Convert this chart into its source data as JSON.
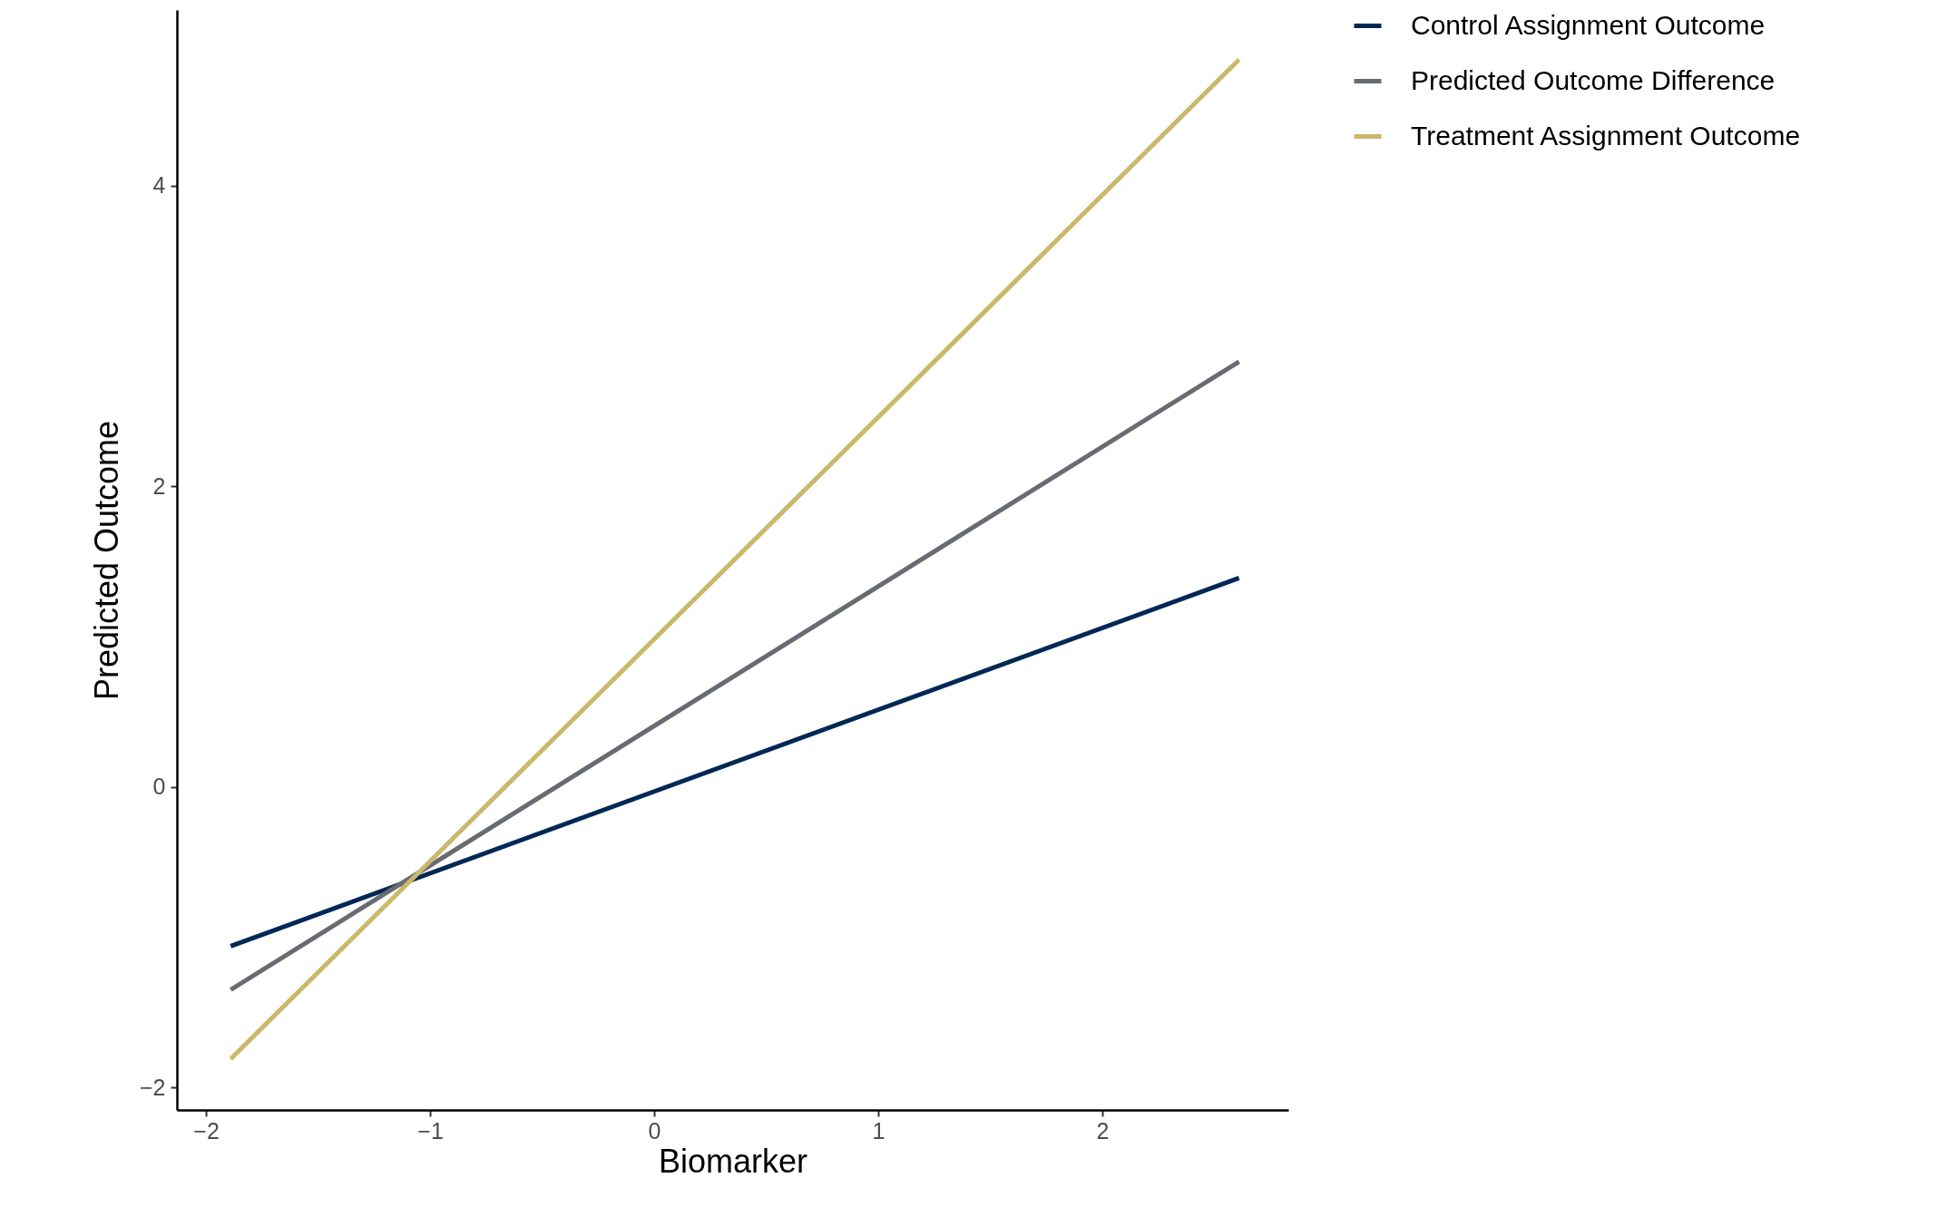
{
  "chart_data": {
    "type": "line",
    "xlabel": "Biomarker",
    "ylabel": "Predicted Outcome",
    "x": [
      -1.89,
      2.61
    ],
    "series": [
      {
        "name": "Control Assignment Outcome",
        "color": "#002855",
        "values": [
          -1.06,
          1.39
        ]
      },
      {
        "name": "Predicted Outcome Difference",
        "color": "#696b73",
        "values": [
          -1.35,
          2.83
        ]
      },
      {
        "name": "Treatment Assignment Outcome",
        "color": "#c9b96a",
        "values": [
          -1.81,
          4.84
        ]
      }
    ],
    "xlim": [
      -2.13,
      2.83
    ],
    "xticks": [
      -2,
      -1,
      0,
      1,
      2
    ],
    "ylim": [
      -2.15,
      5.17
    ],
    "yticks": [
      -2,
      0,
      2,
      4
    ],
    "grid": false,
    "legend": "right"
  }
}
